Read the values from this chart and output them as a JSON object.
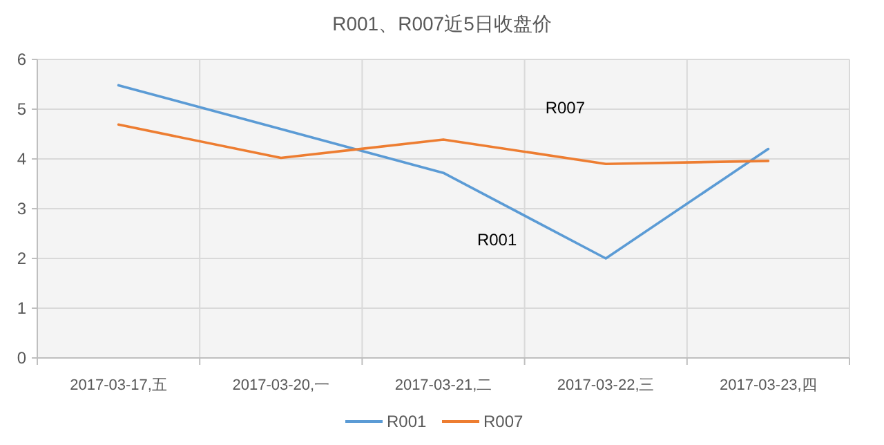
{
  "chart_data": {
    "type": "line",
    "title": "R001、R007近5日收盘价",
    "categories": [
      "2017-03-17,五",
      "2017-03-20,一",
      "2017-03-21,二",
      "2017-03-22,三",
      "2017-03-23,四"
    ],
    "series": [
      {
        "name": "R001",
        "color": "#5b9bd5",
        "values": [
          5.48,
          4.6,
          3.72,
          2.0,
          4.2
        ]
      },
      {
        "name": "R007",
        "color": "#ed7d31",
        "values": [
          4.69,
          4.02,
          4.39,
          3.9,
          3.96
        ]
      }
    ],
    "ylim": [
      0,
      6
    ],
    "yticks": [
      0,
      1,
      2,
      3,
      4,
      5,
      6
    ],
    "grid": true,
    "legend": "bottom",
    "marker": "none",
    "line_style": "solid"
  }
}
